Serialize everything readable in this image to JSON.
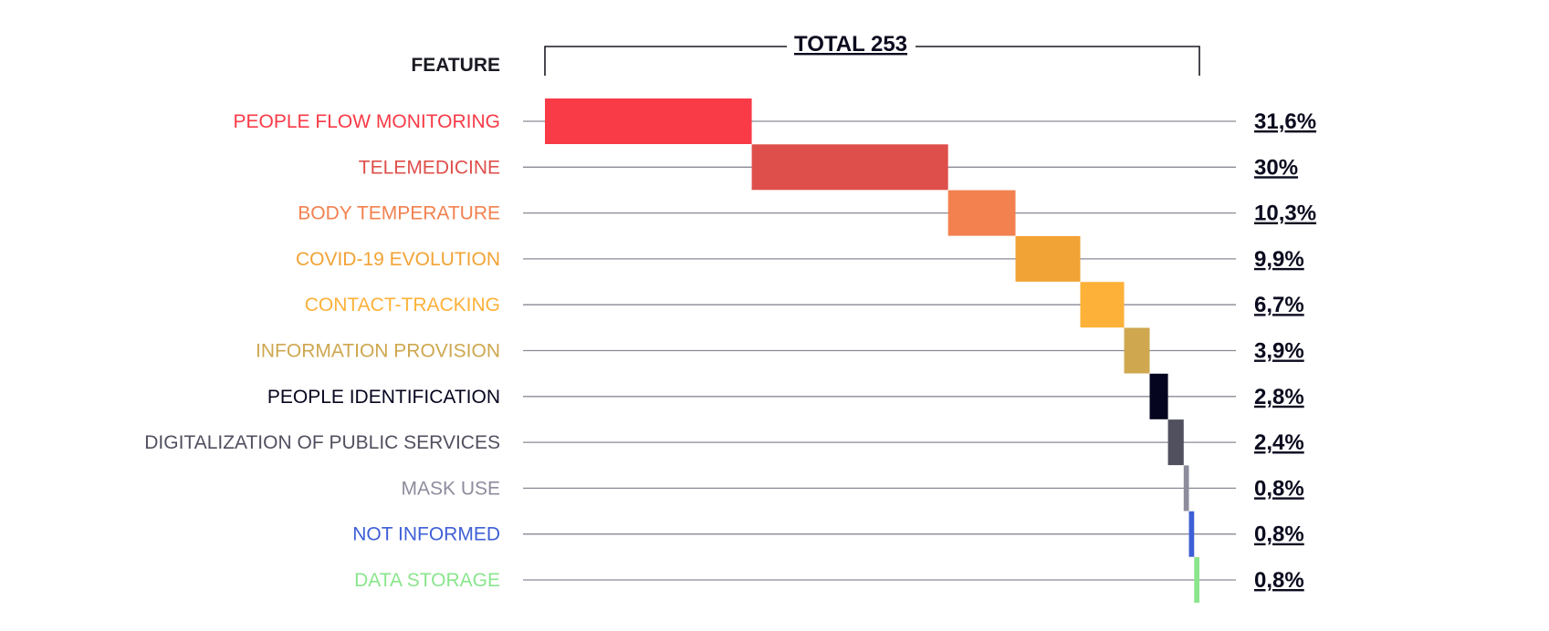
{
  "chart_data": {
    "type": "bar",
    "subtype": "waterfall",
    "header": "FEATURE",
    "total_label": "TOTAL 253",
    "total": 253,
    "categories": [
      "PEOPLE FLOW MONITORING",
      "TELEMEDICINE",
      "BODY TEMPERATURE",
      "COVID-19 EVOLUTION",
      "CONTACT-TRACKING",
      "INFORMATION PROVISION",
      "PEOPLE IDENTIFICATION",
      "DIGITALIZATION OF PUBLIC SERVICES",
      "MASK USE",
      "NOT INFORMED",
      "DATA STORAGE"
    ],
    "values": [
      31.6,
      30,
      10.3,
      9.9,
      6.7,
      3.9,
      2.8,
      2.4,
      0.8,
      0.8,
      0.8
    ],
    "value_labels": [
      "31,6%",
      "30%",
      "10,3%",
      "9,9%",
      "6,7%",
      "3,9%",
      "2,8%",
      "2,4%",
      "0,8%",
      "0,8%",
      "0,8%"
    ],
    "colors": [
      "#f93a47",
      "#de4f4b",
      "#f2814f",
      "#f2a335",
      "#fdb139",
      "#cea74f",
      "#05051f",
      "#50505f",
      "#8d8d9d",
      "#3f5fd6",
      "#8ae58d"
    ],
    "label_colors": [
      "#f93a47",
      "#de4f4b",
      "#f2814f",
      "#f2a335",
      "#fdb139",
      "#cea74f",
      "#05051f",
      "#50505f",
      "#8d8d9d",
      "#3f5fd6",
      "#8ae58d"
    ],
    "grid": true,
    "legend": "none"
  }
}
